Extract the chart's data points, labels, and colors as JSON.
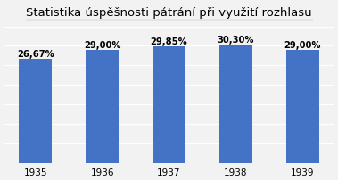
{
  "title": "Statistika úspěšnosti pátrání při využití rozhlasu",
  "categories": [
    "1935",
    "1936",
    "1937",
    "1938",
    "1939"
  ],
  "values": [
    26.67,
    29.0,
    29.85,
    30.3,
    29.0
  ],
  "labels": [
    "26,67%",
    "29,00%",
    "29,85%",
    "30,30%",
    "29,00%"
  ],
  "bar_color": "#4472C4",
  "background_color": "#F2F2F2",
  "ylim": [
    0,
    35
  ],
  "yticks": [
    0,
    5,
    10,
    15,
    20,
    25,
    30,
    35
  ],
  "title_fontsize": 9.5,
  "label_fontsize": 7.2,
  "tick_fontsize": 7.5
}
